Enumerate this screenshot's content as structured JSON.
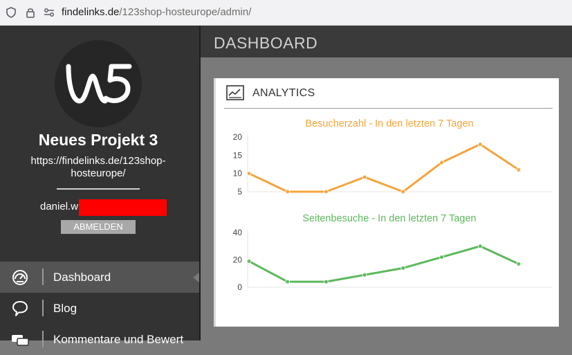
{
  "browser": {
    "url_domain": "findelinks.de",
    "url_path": "/123shop-hosteurope/admin/"
  },
  "sidebar": {
    "project_title": "Neues Projekt 3",
    "project_url": "https://findelinks.de/123shop-hosteurope/",
    "user_name": "daniel.w",
    "logout_label": "ABMELDEN",
    "nav": [
      {
        "label": "Dashboard",
        "icon": "gauge-icon",
        "active": true
      },
      {
        "label": "Blog",
        "icon": "speech-bubble-icon",
        "active": false
      },
      {
        "label": "Kommentare und Bewert",
        "icon": "comments-icon",
        "active": false
      }
    ]
  },
  "header": {
    "title": "DASHBOARD"
  },
  "panel": {
    "title": "ANALYTICS"
  },
  "colors": {
    "orange": "#f4a43c",
    "green": "#5cb85c"
  },
  "chart_data": [
    {
      "type": "line",
      "title": "Besucherzahl - In den letzten 7 Tagen",
      "yticks": [
        5,
        10,
        15,
        20
      ],
      "ylim": [
        5,
        20
      ],
      "series": [
        {
          "values": [
            10,
            5,
            5,
            9,
            5,
            13,
            18,
            11
          ]
        }
      ]
    },
    {
      "type": "line",
      "title": "Seitenbesuche - In den letzten 7 Tagen",
      "yticks": [
        0,
        20,
        40
      ],
      "ylim": [
        0,
        40
      ],
      "series": [
        {
          "values": [
            19,
            4,
            4,
            9,
            14,
            22,
            30,
            17
          ]
        }
      ]
    }
  ]
}
